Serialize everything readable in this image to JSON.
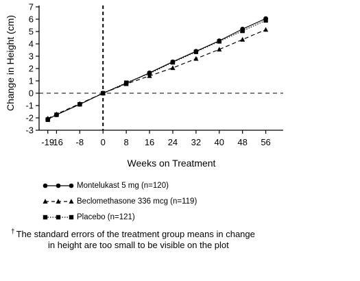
{
  "chart_data": {
    "type": "line",
    "title": "",
    "xlabel": "Weeks on Treatment",
    "ylabel": "Change in Height (cm)",
    "xlim": [
      -22,
      62
    ],
    "ylim": [
      -3,
      7
    ],
    "x_ticks": [
      -19,
      -16,
      -8,
      0,
      8,
      16,
      24,
      32,
      40,
      48,
      56
    ],
    "y_ticks": [
      -3,
      -2,
      -1,
      0,
      1,
      2,
      3,
      4,
      5,
      6,
      7
    ],
    "reference_lines": {
      "horizontal_at_y": 0,
      "vertical_at_x": 0
    },
    "grid": false,
    "legend_position": "bottom",
    "series": [
      {
        "name": "Montelukast 5 mg (n=120)",
        "marker": "circle",
        "line_style": "solid",
        "x": [
          -19,
          -16,
          -8,
          0,
          8,
          16,
          24,
          32,
          40,
          48,
          56
        ],
        "y": [
          -2.1,
          -1.75,
          -0.9,
          0,
          0.8,
          1.65,
          2.55,
          3.4,
          4.25,
          5.2,
          6.05
        ]
      },
      {
        "name": "Beclomethasone 336 mcg (n=119)",
        "marker": "triangle",
        "line_style": "dashed",
        "x": [
          -19,
          -16,
          -8,
          0,
          8,
          16,
          24,
          32,
          40,
          48,
          56
        ],
        "y": [
          -2.05,
          -1.7,
          -0.85,
          0,
          0.75,
          1.4,
          2.05,
          2.8,
          3.55,
          4.35,
          5.15
        ]
      },
      {
        "name": "Placebo (n=121)",
        "marker": "square",
        "line_style": "dotted",
        "x": [
          -19,
          -16,
          -8,
          0,
          8,
          16,
          24,
          32,
          40,
          48,
          56
        ],
        "y": [
          -2.15,
          -1.75,
          -0.9,
          0,
          0.85,
          1.6,
          2.5,
          3.35,
          4.2,
          5.05,
          5.9
        ]
      }
    ]
  },
  "footnote": {
    "symbol": "†",
    "line1": "The standard errors of the treatment group means in change",
    "line2": "in height are too small to be visible on the plot"
  }
}
